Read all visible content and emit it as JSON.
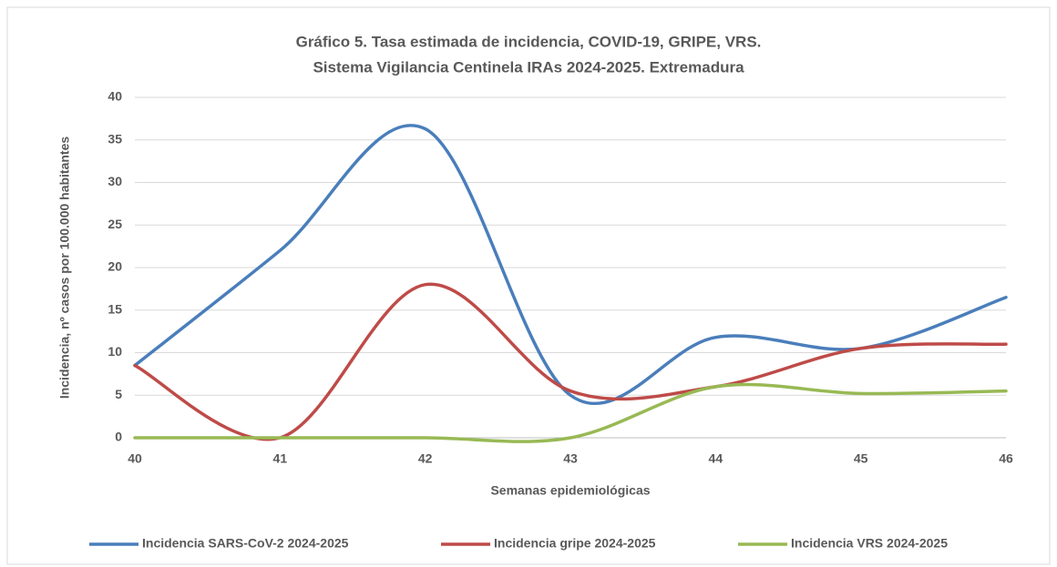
{
  "chart_data": {
    "type": "line",
    "title": "Gráfico 5. Tasa estimada de incidencia, COVID-19, GRIPE, VRS.",
    "subtitle": "Sistema Vigilancia Centinela IRAs 2024-2025. Extremadura",
    "x_label": "Semanas epidemiológicas",
    "y_label": "Incidencia, nº casos por 100.000 habitantes",
    "categories": [
      "40",
      "41",
      "42",
      "43",
      "44",
      "45",
      "46"
    ],
    "series": [
      {
        "name": "Incidencia SARS-CoV-2 2024-2025",
        "color": "#4a7ebb",
        "values": [
          8.5,
          22,
          36.3,
          5,
          11.8,
          10.5,
          16.5
        ]
      },
      {
        "name": "Incidencia gripe 2024-2025",
        "color": "#be4b48",
        "values": [
          8.5,
          0,
          18,
          5.5,
          6,
          10.5,
          11
        ]
      },
      {
        "name": "Incidencia VRS 2024-2025",
        "color": "#98b954",
        "values": [
          0,
          0,
          0,
          0,
          6,
          5.2,
          5.5
        ]
      }
    ],
    "ylim": [
      0,
      40
    ],
    "yticks": [
      0,
      5,
      10,
      15,
      20,
      25,
      30,
      35,
      40
    ],
    "grid": true,
    "smooth": true,
    "legend": "bottom"
  }
}
